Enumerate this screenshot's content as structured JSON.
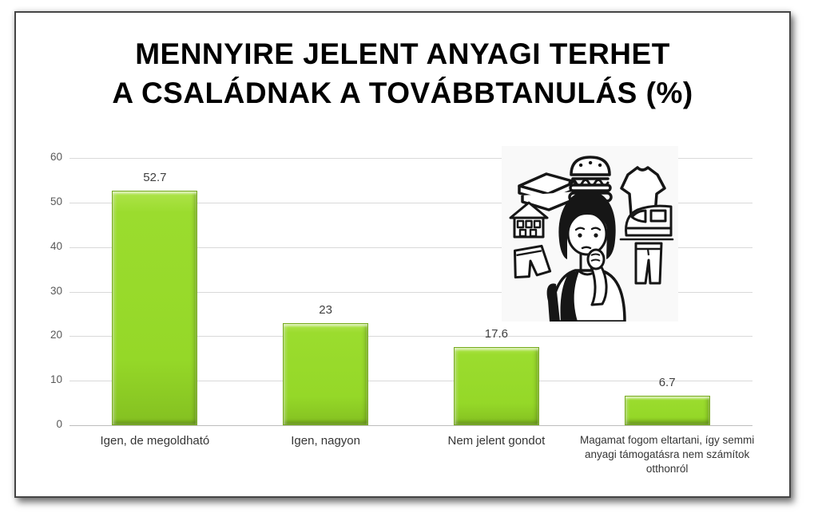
{
  "title_lines": [
    "MENNYIRE JELENT ANYAGI TERHET",
    "A CSALÁDNAK A TOVÁBBTANULÁS (%)"
  ],
  "chart_data": {
    "type": "bar",
    "title": "MENNYIRE JELENT ANYAGI TERHET A CSALÁDNAK A TOVÁBBTANULÁS (%)",
    "categories": [
      "Igen, de megoldható",
      "Igen, nagyon",
      "Nem jelent gondot",
      "Magamat fogom eltartani, így semmi anyagi támogatásra nem számítok otthonról"
    ],
    "values": [
      52.7,
      23,
      17.6,
      6.7
    ],
    "data_labels": [
      "52.7",
      "23",
      "17.6",
      "6.7"
    ],
    "xlabel": "",
    "ylabel": "",
    "ylim": [
      0,
      60
    ],
    "yticks": [
      0,
      10,
      20,
      30,
      40,
      50,
      60
    ],
    "grid": true,
    "legend": false,
    "bar_color": "#95d828",
    "bar_edge_color": "#76ab1d",
    "gridline_color": "#d9d9d9",
    "value_label_color": "#404040",
    "tick_label_color": "#595959",
    "title_color": "#000000"
  },
  "illustration": {
    "alt": "Black and white line drawing of a worried student with a backpack thinking about expenses",
    "items": [
      "books",
      "hamburger",
      "t-shirt",
      "house",
      "train",
      "shorts",
      "jeans",
      "thinking-girl"
    ]
  }
}
